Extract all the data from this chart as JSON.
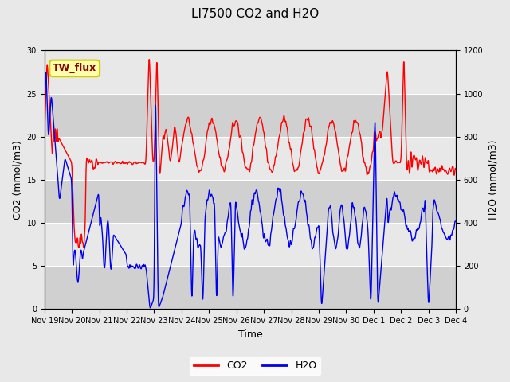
{
  "title": "LI7500 CO2 and H2O",
  "xlabel": "Time",
  "ylabel_left": "CO2 (mmol/m3)",
  "ylabel_right": "H2O (mmol/m3)",
  "ylim_left": [
    0,
    30
  ],
  "ylim_right": [
    0,
    1200
  ],
  "co2_color": "#ff0000",
  "h2o_color": "#0000ee",
  "background_color": "#e8e8e8",
  "plot_bg_color": "#e8e8e8",
  "stripe_color": "#d0d0d0",
  "legend_label_co2": "CO2",
  "legend_label_h2o": "H2O",
  "annotation_text": "TW_flux",
  "annotation_bg": "#ffffaa",
  "annotation_border": "#cccc00",
  "x_tick_labels": [
    "Nov 19",
    "Nov 20",
    "Nov 21",
    "Nov 22",
    "Nov 23",
    "Nov 24",
    "Nov 25",
    "Nov 26",
    "Nov 27",
    "Nov 28",
    "Nov 29",
    "Nov 30",
    "Dec 1",
    "Dec 2",
    "Dec 3",
    "Dec 4"
  ],
  "linewidth": 1.0,
  "title_fontsize": 11,
  "tick_fontsize": 7,
  "label_fontsize": 9
}
